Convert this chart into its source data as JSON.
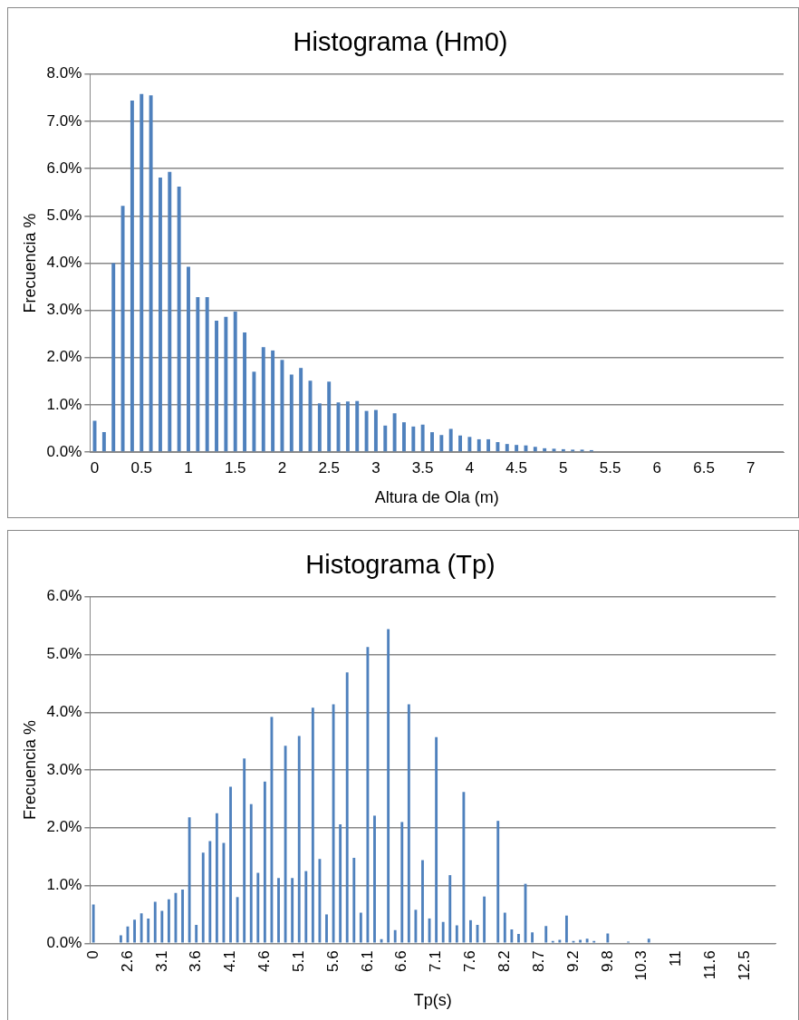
{
  "chart_data": [
    {
      "type": "bar",
      "title": "Histograma (Hm0)",
      "xlabel": "Altura de Ola (m)",
      "ylabel": "Frecuencia %",
      "categories": [
        "0",
        null,
        null,
        null,
        null,
        "0.5",
        null,
        null,
        null,
        null,
        "1",
        null,
        null,
        null,
        null,
        "1.5",
        null,
        null,
        null,
        null,
        "2",
        null,
        null,
        null,
        null,
        "2.5",
        null,
        null,
        null,
        null,
        "3",
        null,
        null,
        null,
        null,
        "3.5",
        null,
        null,
        null,
        null,
        "4",
        null,
        null,
        null,
        null,
        "4.5",
        null,
        null,
        null,
        null,
        "5",
        null,
        null,
        null,
        null,
        "5.5",
        null,
        null,
        null,
        null,
        "6",
        null,
        null,
        null,
        null,
        "6.5",
        null,
        null,
        null,
        null,
        "7",
        null,
        null,
        null
      ],
      "values": [
        0.66,
        0.42,
        4.0,
        5.21,
        7.44,
        7.58,
        7.55,
        5.81,
        5.93,
        5.62,
        3.92,
        3.28,
        3.28,
        2.78,
        2.86,
        2.97,
        2.53,
        1.7,
        2.22,
        2.15,
        1.95,
        1.64,
        1.78,
        1.51,
        1.03,
        1.49,
        1.05,
        1.07,
        1.08,
        0.87,
        0.89,
        0.56,
        0.82,
        0.63,
        0.54,
        0.58,
        0.42,
        0.36,
        0.49,
        0.35,
        0.32,
        0.27,
        0.27,
        0.21,
        0.17,
        0.15,
        0.14,
        0.11,
        0.08,
        0.07,
        0.06,
        0.05,
        0.05,
        0.04,
        null,
        null,
        null,
        null,
        null,
        0,
        0,
        0,
        0,
        0,
        0,
        0,
        0,
        0,
        0,
        0,
        0,
        0,
        0,
        0
      ],
      "color": "#4f81bd",
      "ylim": [
        0,
        8
      ],
      "yticks": [
        {
          "value": 0,
          "label": "0.0%"
        },
        {
          "value": 1,
          "label": "1.0%"
        },
        {
          "value": 2,
          "label": "2.0%"
        },
        {
          "value": 3,
          "label": "3.0%"
        },
        {
          "value": 4,
          "label": "4.0%"
        },
        {
          "value": 5,
          "label": "5.0%"
        },
        {
          "value": 6,
          "label": "6.0%"
        },
        {
          "value": 7,
          "label": "7.0%"
        },
        {
          "value": 8,
          "label": "8.0%"
        }
      ],
      "grid": "y"
    },
    {
      "type": "bar",
      "title": "Histograma (Tp)",
      "xlabel": "Tp(s)",
      "ylabel": "Frecuencia %",
      "categories": [
        "0",
        null,
        null,
        null,
        null,
        "2.6",
        null,
        null,
        null,
        null,
        "3.1",
        null,
        null,
        null,
        null,
        "3.6",
        null,
        null,
        null,
        null,
        "4.1",
        null,
        null,
        null,
        null,
        "4.6",
        null,
        null,
        null,
        null,
        "5.1",
        null,
        null,
        null,
        null,
        "5.6",
        null,
        null,
        null,
        null,
        "6.1",
        null,
        null,
        null,
        null,
        "6.6",
        null,
        null,
        null,
        null,
        "7.1",
        null,
        null,
        null,
        null,
        "7.6",
        null,
        null,
        null,
        null,
        "8.2",
        null,
        null,
        null,
        null,
        "8.7",
        null,
        null,
        null,
        null,
        "9.2",
        null,
        null,
        null,
        null,
        "9.8",
        null,
        null,
        null,
        null,
        "10.3",
        null,
        null,
        null,
        null,
        "11",
        null,
        null,
        null,
        null,
        "11.6",
        null,
        null,
        null,
        null,
        "12.5",
        null,
        null,
        null,
        null
      ],
      "values": [
        0.67,
        0,
        0,
        0,
        0.14,
        0.29,
        0.41,
        0.52,
        0.43,
        0.72,
        0.56,
        0.76,
        0.87,
        0.93,
        2.18,
        0.32,
        1.57,
        1.77,
        2.25,
        1.74,
        2.71,
        0.8,
        3.2,
        2.41,
        1.22,
        2.8,
        3.92,
        1.13,
        3.42,
        1.13,
        3.59,
        1.25,
        4.08,
        1.46,
        0.5,
        4.14,
        2.06,
        4.69,
        1.48,
        0.53,
        5.13,
        2.21,
        0.07,
        5.44,
        0.23,
        2.1,
        4.14,
        0.58,
        1.44,
        0.43,
        3.57,
        0.37,
        1.18,
        0.31,
        2.62,
        0.4,
        0.32,
        0.81,
        0,
        2.12,
        0.53,
        0.24,
        0.16,
        1.03,
        0.19,
        0,
        0.3,
        0.04,
        0.06,
        0.48,
        0.04,
        0.06,
        0.08,
        0.04,
        0,
        0.17,
        0,
        0,
        0.03,
        0,
        0,
        0.08,
        0,
        0,
        0,
        0,
        0,
        0,
        0,
        0,
        0,
        0,
        0,
        0,
        0,
        0,
        0,
        0,
        0,
        0
      ],
      "color": "#4f81bd",
      "ylim": [
        0,
        6
      ],
      "yticks": [
        {
          "value": 0,
          "label": "0.0%"
        },
        {
          "value": 1,
          "label": "1.0%"
        },
        {
          "value": 2,
          "label": "2.0%"
        },
        {
          "value": 3,
          "label": "3.0%"
        },
        {
          "value": 4,
          "label": "4.0%"
        },
        {
          "value": 5,
          "label": "5.0%"
        },
        {
          "value": 6,
          "label": "6.0%"
        }
      ],
      "grid": "y"
    }
  ]
}
